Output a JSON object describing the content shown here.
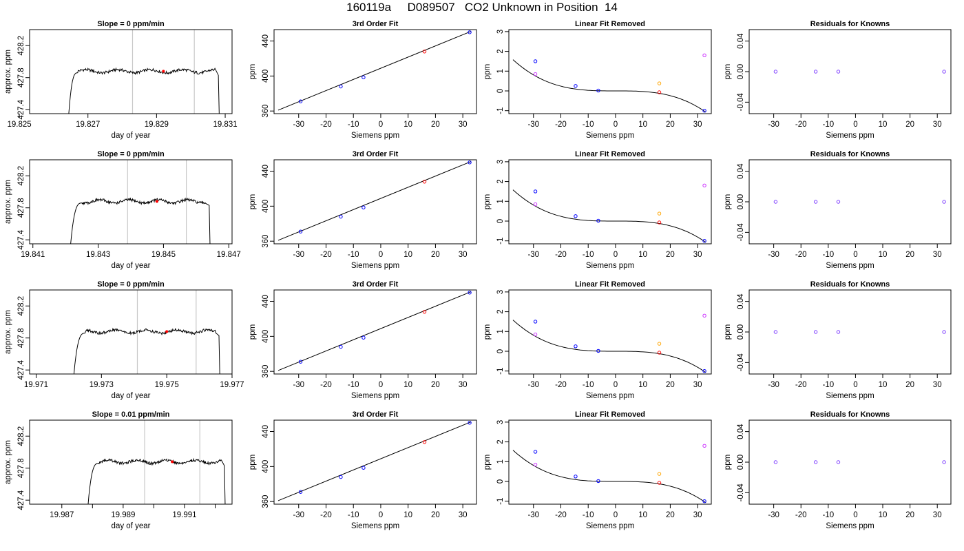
{
  "title": "160119a     D089507   CO2 Unknown in Position  14",
  "chart_data": [
    {
      "row": 0,
      "col": 0,
      "type": "line",
      "title": "Slope =  0  ppm/min",
      "xlabel": "day of year",
      "ylabel": "approx. ppm",
      "xlim": [
        19.8253,
        19.8312
      ],
      "ylim": [
        427.35,
        428.4
      ],
      "xticks": [
        19.825,
        19.827,
        19.829,
        19.831
      ],
      "xtick_labels": [
        "19.825",
        "19.827",
        "19.829",
        "19.831"
      ],
      "yticks": [
        427.4,
        427.8,
        428.2
      ],
      "ytick_labels": [
        "427.4",
        "427.8",
        "428.2"
      ],
      "trace": {
        "t_start": 19.8264,
        "t_plateau": 19.8267,
        "t_end_plateau": 19.8307,
        "t_stop": 19.8308,
        "level": 427.88
      },
      "vlines": [
        19.8283,
        19.8301
      ],
      "marker": {
        "x": 19.8292,
        "y": 427.88,
        "color": "#ff0000"
      }
    },
    {
      "row": 0,
      "col": 1,
      "type": "scatter",
      "title": "3rd Order Fit",
      "xlabel": "Siemens ppm",
      "ylabel": "ppm",
      "xlim": [
        -39,
        35
      ],
      "ylim": [
        357,
        453
      ],
      "xticks": [
        -30,
        -20,
        -10,
        0,
        10,
        20,
        30
      ],
      "xtick_labels": [
        "-30",
        "-20",
        "-10",
        "0",
        "10",
        "20",
        "30"
      ],
      "yticks": [
        360,
        400,
        440
      ],
      "ytick_labels": [
        "360",
        "400",
        "440"
      ],
      "fit_line": {
        "x": [
          -37.5,
          33
        ],
        "y": [
          361,
          451
        ]
      },
      "points": [
        {
          "x": -29.3,
          "y": 371,
          "color": "#0000ff"
        },
        {
          "x": -14.6,
          "y": 388,
          "color": "#0000ff"
        },
        {
          "x": -6.3,
          "y": 398.5,
          "color": "#0000ff"
        },
        {
          "x": 16,
          "y": 428,
          "color": "#ff0000"
        },
        {
          "x": 32.5,
          "y": 450,
          "color": "#0000ff"
        }
      ]
    },
    {
      "row": 0,
      "col": 2,
      "type": "scatter",
      "title": "Linear Fit Removed",
      "xlabel": "Siemens ppm",
      "ylabel": "ppm",
      "xlim": [
        -39,
        35
      ],
      "ylim": [
        -1.15,
        3.1
      ],
      "xticks": [
        -30,
        -20,
        -10,
        0,
        10,
        20,
        30
      ],
      "xtick_labels": [
        "-30",
        "-20",
        "-10",
        "0",
        "10",
        "20",
        "30"
      ],
      "yticks": [
        -1,
        0,
        1,
        2,
        3
      ],
      "ytick_labels": [
        "-1",
        "0",
        "1",
        "2",
        "3"
      ],
      "curve": {
        "x_from": -37.5,
        "x_to": 33,
        "x_center": 0,
        "coeff": 3e-05
      },
      "points": [
        {
          "x": -29.3,
          "y": 1.5,
          "color": "#0000ff"
        },
        {
          "x": -29.3,
          "y": 0.85,
          "color": "#cc33ff"
        },
        {
          "x": -14.6,
          "y": 0.25,
          "color": "#0000ff"
        },
        {
          "x": -6.3,
          "y": 0.02,
          "color": "#0000ff"
        },
        {
          "x": 16,
          "y": 0.38,
          "color": "#ffa500"
        },
        {
          "x": 16,
          "y": -0.07,
          "color": "#ff0000"
        },
        {
          "x": 32.5,
          "y": 1.8,
          "color": "#cc33ff"
        },
        {
          "x": 32.5,
          "y": -1.0,
          "color": "#0000ff"
        }
      ]
    },
    {
      "row": 0,
      "col": 3,
      "type": "scatter",
      "title": "Residuals for Knowns",
      "xlabel": "Siemens ppm",
      "ylabel": "ppm",
      "xlim": [
        -39,
        35
      ],
      "ylim": [
        -0.055,
        0.055
      ],
      "xticks": [
        -30,
        -20,
        -10,
        0,
        10,
        20,
        30
      ],
      "xtick_labels": [
        "-30",
        "-20",
        "-10",
        "0",
        "10",
        "20",
        "30"
      ],
      "yticks": [
        -0.04,
        0,
        0.04
      ],
      "ytick_labels": [
        "-0.04",
        "0.00",
        "0.04"
      ],
      "points": [
        {
          "x": -29.3,
          "y": 0,
          "color": "#7f3fff"
        },
        {
          "x": -14.6,
          "y": 0,
          "color": "#7f3fff"
        },
        {
          "x": -6.3,
          "y": 0,
          "color": "#7f3fff"
        },
        {
          "x": 32.5,
          "y": 0,
          "color": "#7f3fff"
        }
      ]
    },
    {
      "row": 1,
      "col": 0,
      "type": "line",
      "title": "Slope =  0  ppm/min",
      "xlabel": "day of year",
      "ylabel": "approx. ppm",
      "xlim": [
        19.8409,
        19.8471
      ],
      "ylim": [
        427.35,
        428.4
      ],
      "xticks": [
        19.841,
        19.843,
        19.845,
        19.847
      ],
      "xtick_labels": [
        "19.841",
        "19.843",
        "19.845",
        "19.847"
      ],
      "yticks": [
        427.4,
        427.8,
        428.2
      ],
      "ytick_labels": [
        "427.4",
        "427.8",
        "428.2"
      ],
      "trace": {
        "t_start": 19.8421,
        "t_plateau": 19.8425,
        "t_end_plateau": 19.8463,
        "t_stop": 19.8464,
        "level": 427.88
      },
      "vlines": [
        19.8439,
        19.8457
      ],
      "marker": {
        "x": 19.8448,
        "y": 427.88,
        "color": "#ff0000"
      }
    },
    {
      "row": 1,
      "col": 1,
      "type": "scatter",
      "title": "3rd Order Fit",
      "xlabel": "Siemens ppm",
      "ylabel": "ppm",
      "xlim": [
        -39,
        35
      ],
      "ylim": [
        357,
        453
      ],
      "xticks": [
        -30,
        -20,
        -10,
        0,
        10,
        20,
        30
      ],
      "xtick_labels": [
        "-30",
        "-20",
        "-10",
        "0",
        "10",
        "20",
        "30"
      ],
      "yticks": [
        360,
        400,
        440
      ],
      "ytick_labels": [
        "360",
        "400",
        "440"
      ],
      "fit_line": {
        "x": [
          -37.5,
          33
        ],
        "y": [
          361,
          451
        ]
      },
      "points": [
        {
          "x": -29.3,
          "y": 371,
          "color": "#0000ff"
        },
        {
          "x": -14.6,
          "y": 388,
          "color": "#0000ff"
        },
        {
          "x": -6.3,
          "y": 398.5,
          "color": "#0000ff"
        },
        {
          "x": 16,
          "y": 428,
          "color": "#ff0000"
        },
        {
          "x": 32.5,
          "y": 450,
          "color": "#0000ff"
        }
      ]
    },
    {
      "row": 1,
      "col": 2,
      "type": "scatter",
      "title": "Linear Fit Removed",
      "xlabel": "Siemens ppm",
      "ylabel": "ppm",
      "xlim": [
        -39,
        35
      ],
      "ylim": [
        -1.15,
        3.1
      ],
      "xticks": [
        -30,
        -20,
        -10,
        0,
        10,
        20,
        30
      ],
      "xtick_labels": [
        "-30",
        "-20",
        "-10",
        "0",
        "10",
        "20",
        "30"
      ],
      "yticks": [
        -1,
        0,
        1,
        2,
        3
      ],
      "ytick_labels": [
        "-1",
        "0",
        "1",
        "2",
        "3"
      ],
      "curve": {
        "x_from": -37.5,
        "x_to": 33,
        "x_center": 0,
        "coeff": 3e-05
      },
      "points": [
        {
          "x": -29.3,
          "y": 1.5,
          "color": "#0000ff"
        },
        {
          "x": -29.3,
          "y": 0.85,
          "color": "#cc33ff"
        },
        {
          "x": -14.6,
          "y": 0.25,
          "color": "#0000ff"
        },
        {
          "x": -6.3,
          "y": 0.02,
          "color": "#0000ff"
        },
        {
          "x": 16,
          "y": 0.38,
          "color": "#ffa500"
        },
        {
          "x": 16,
          "y": -0.07,
          "color": "#ff0000"
        },
        {
          "x": 32.5,
          "y": 1.8,
          "color": "#cc33ff"
        },
        {
          "x": 32.5,
          "y": -1.0,
          "color": "#0000ff"
        }
      ]
    },
    {
      "row": 1,
      "col": 3,
      "type": "scatter",
      "title": "Residuals for Knowns",
      "xlabel": "Siemens ppm",
      "ylabel": "ppm",
      "xlim": [
        -39,
        35
      ],
      "ylim": [
        -0.055,
        0.055
      ],
      "xticks": [
        -30,
        -20,
        -10,
        0,
        10,
        20,
        30
      ],
      "xtick_labels": [
        "-30",
        "-20",
        "-10",
        "0",
        "10",
        "20",
        "30"
      ],
      "yticks": [
        -0.04,
        0,
        0.04
      ],
      "ytick_labels": [
        "-0.04",
        "0.00",
        "0.04"
      ],
      "points": [
        {
          "x": -29.3,
          "y": 0,
          "color": "#7f3fff"
        },
        {
          "x": -14.6,
          "y": 0,
          "color": "#7f3fff"
        },
        {
          "x": -6.3,
          "y": 0,
          "color": "#7f3fff"
        },
        {
          "x": 32.5,
          "y": 0,
          "color": "#7f3fff"
        }
      ]
    },
    {
      "row": 2,
      "col": 0,
      "type": "line",
      "title": "Slope =  0  ppm/min",
      "xlabel": "day of year",
      "ylabel": "approx. ppm",
      "xlim": [
        19.9708,
        19.977
      ],
      "ylim": [
        427.35,
        428.4
      ],
      "xticks": [
        19.971,
        19.973,
        19.975,
        19.977
      ],
      "xtick_labels": [
        "19.971",
        "19.973",
        "19.975",
        "19.977"
      ],
      "yticks": [
        427.4,
        427.8,
        428.2
      ],
      "ytick_labels": [
        "427.4",
        "427.8",
        "428.2"
      ],
      "trace": {
        "t_start": 19.9721,
        "t_plateau": 19.9725,
        "t_end_plateau": 19.9765,
        "t_stop": 19.9766,
        "level": 427.88
      },
      "vlines": [
        19.9741,
        19.9759
      ],
      "marker": {
        "x": 19.975,
        "y": 427.88,
        "color": "#ff0000"
      }
    },
    {
      "row": 2,
      "col": 1,
      "type": "scatter",
      "title": "3rd Order Fit",
      "xlabel": "Siemens ppm",
      "ylabel": "ppm",
      "xlim": [
        -39,
        35
      ],
      "ylim": [
        357,
        453
      ],
      "xticks": [
        -30,
        -20,
        -10,
        0,
        10,
        20,
        30
      ],
      "xtick_labels": [
        "-30",
        "-20",
        "-10",
        "0",
        "10",
        "20",
        "30"
      ],
      "yticks": [
        360,
        400,
        440
      ],
      "ytick_labels": [
        "360",
        "400",
        "440"
      ],
      "fit_line": {
        "x": [
          -37.5,
          33
        ],
        "y": [
          361,
          451
        ]
      },
      "points": [
        {
          "x": -29.3,
          "y": 371,
          "color": "#0000ff"
        },
        {
          "x": -14.6,
          "y": 388,
          "color": "#0000ff"
        },
        {
          "x": -6.3,
          "y": 398.5,
          "color": "#0000ff"
        },
        {
          "x": 16,
          "y": 428,
          "color": "#ff0000"
        },
        {
          "x": 32.5,
          "y": 450,
          "color": "#0000ff"
        }
      ]
    },
    {
      "row": 2,
      "col": 2,
      "type": "scatter",
      "title": "Linear Fit Removed",
      "xlabel": "Siemens ppm",
      "ylabel": "ppm",
      "xlim": [
        -39,
        35
      ],
      "ylim": [
        -1.15,
        3.1
      ],
      "xticks": [
        -30,
        -20,
        -10,
        0,
        10,
        20,
        30
      ],
      "xtick_labels": [
        "-30",
        "-20",
        "-10",
        "0",
        "10",
        "20",
        "30"
      ],
      "yticks": [
        -1,
        0,
        1,
        2,
        3
      ],
      "ytick_labels": [
        "-1",
        "0",
        "1",
        "2",
        "3"
      ],
      "curve": {
        "x_from": -37.5,
        "x_to": 33,
        "x_center": 0,
        "coeff": 3e-05
      },
      "points": [
        {
          "x": -29.3,
          "y": 1.5,
          "color": "#0000ff"
        },
        {
          "x": -29.3,
          "y": 0.85,
          "color": "#cc33ff"
        },
        {
          "x": -14.6,
          "y": 0.25,
          "color": "#0000ff"
        },
        {
          "x": -6.3,
          "y": 0.02,
          "color": "#0000ff"
        },
        {
          "x": 16,
          "y": 0.38,
          "color": "#ffa500"
        },
        {
          "x": 16,
          "y": -0.07,
          "color": "#ff0000"
        },
        {
          "x": 32.5,
          "y": 1.8,
          "color": "#cc33ff"
        },
        {
          "x": 32.5,
          "y": -1.0,
          "color": "#0000ff"
        }
      ]
    },
    {
      "row": 2,
      "col": 3,
      "type": "scatter",
      "title": "Residuals for Knowns",
      "xlabel": "Siemens ppm",
      "ylabel": "ppm",
      "xlim": [
        -39,
        35
      ],
      "ylim": [
        -0.055,
        0.055
      ],
      "xticks": [
        -30,
        -20,
        -10,
        0,
        10,
        20,
        30
      ],
      "xtick_labels": [
        "-30",
        "-20",
        "-10",
        "0",
        "10",
        "20",
        "30"
      ],
      "yticks": [
        -0.04,
        0,
        0.04
      ],
      "ytick_labels": [
        "-0.04",
        "0.00",
        "0.04"
      ],
      "points": [
        {
          "x": -29.3,
          "y": 0,
          "color": "#7f3fff"
        },
        {
          "x": -14.6,
          "y": 0,
          "color": "#7f3fff"
        },
        {
          "x": -6.3,
          "y": 0,
          "color": "#7f3fff"
        },
        {
          "x": 32.5,
          "y": 0,
          "color": "#7f3fff"
        }
      ]
    },
    {
      "row": 3,
      "col": 0,
      "type": "line",
      "title": "Slope =  0.01  ppm/min",
      "xlabel": "day of year",
      "ylabel": "approx. ppm",
      "xlim": [
        19.98595,
        19.99255
      ],
      "ylim": [
        427.35,
        428.4
      ],
      "xticks": [
        19.987,
        19.988,
        19.989,
        19.99,
        19.991,
        19.992
      ],
      "xtick_labels": [
        "19.987",
        "",
        "19.989",
        "",
        "19.991",
        ""
      ],
      "yticks": [
        427.4,
        427.8,
        428.2
      ],
      "ytick_labels": [
        "427.4",
        "427.8",
        "428.2"
      ],
      "trace": {
        "t_start": 19.9878,
        "t_plateau": 19.9882,
        "t_end_plateau": 19.9922,
        "t_stop": 19.9923,
        "level": 427.88
      },
      "vlines": [
        19.9897,
        19.9915
      ],
      "marker": {
        "x": 19.9906,
        "y": 427.88,
        "color": "#ff0000"
      }
    },
    {
      "row": 3,
      "col": 1,
      "type": "scatter",
      "title": "3rd Order Fit",
      "xlabel": "Siemens ppm",
      "ylabel": "ppm",
      "xlim": [
        -39,
        35
      ],
      "ylim": [
        357,
        453
      ],
      "xticks": [
        -30,
        -20,
        -10,
        0,
        10,
        20,
        30
      ],
      "xtick_labels": [
        "-30",
        "-20",
        "-10",
        "0",
        "10",
        "20",
        "30"
      ],
      "yticks": [
        360,
        400,
        440
      ],
      "ytick_labels": [
        "360",
        "400",
        "440"
      ],
      "fit_line": {
        "x": [
          -37.5,
          33
        ],
        "y": [
          361,
          451
        ]
      },
      "points": [
        {
          "x": -29.3,
          "y": 371,
          "color": "#0000ff"
        },
        {
          "x": -14.6,
          "y": 388,
          "color": "#0000ff"
        },
        {
          "x": -6.3,
          "y": 398.5,
          "color": "#0000ff"
        },
        {
          "x": 16,
          "y": 428,
          "color": "#ff0000"
        },
        {
          "x": 32.5,
          "y": 450,
          "color": "#0000ff"
        }
      ]
    },
    {
      "row": 3,
      "col": 2,
      "type": "scatter",
      "title": "Linear Fit Removed",
      "xlabel": "Siemens ppm",
      "ylabel": "ppm",
      "xlim": [
        -39,
        35
      ],
      "ylim": [
        -1.15,
        3.1
      ],
      "xticks": [
        -30,
        -20,
        -10,
        0,
        10,
        20,
        30
      ],
      "xtick_labels": [
        "-30",
        "-20",
        "-10",
        "0",
        "10",
        "20",
        "30"
      ],
      "yticks": [
        -1,
        0,
        1,
        2,
        3
      ],
      "ytick_labels": [
        "-1",
        "0",
        "1",
        "2",
        "3"
      ],
      "curve": {
        "x_from": -37.5,
        "x_to": 33,
        "x_center": 0,
        "coeff": 3e-05
      },
      "points": [
        {
          "x": -29.3,
          "y": 1.5,
          "color": "#0000ff"
        },
        {
          "x": -29.3,
          "y": 0.85,
          "color": "#cc33ff"
        },
        {
          "x": -14.6,
          "y": 0.25,
          "color": "#0000ff"
        },
        {
          "x": -6.3,
          "y": 0.02,
          "color": "#0000ff"
        },
        {
          "x": 16,
          "y": 0.38,
          "color": "#ffa500"
        },
        {
          "x": 16,
          "y": -0.07,
          "color": "#ff0000"
        },
        {
          "x": 32.5,
          "y": 1.8,
          "color": "#cc33ff"
        },
        {
          "x": 32.5,
          "y": -1.0,
          "color": "#0000ff"
        }
      ]
    },
    {
      "row": 3,
      "col": 3,
      "type": "scatter",
      "title": "Residuals for Knowns",
      "xlabel": "Siemens ppm",
      "ylabel": "ppm",
      "xlim": [
        -39,
        35
      ],
      "ylim": [
        -0.055,
        0.055
      ],
      "xticks": [
        -30,
        -20,
        -10,
        0,
        10,
        20,
        30
      ],
      "xtick_labels": [
        "-30",
        "-20",
        "-10",
        "0",
        "10",
        "20",
        "30"
      ],
      "yticks": [
        -0.04,
        0,
        0.04
      ],
      "ytick_labels": [
        "-0.04",
        "0.00",
        "0.04"
      ],
      "points": [
        {
          "x": -29.3,
          "y": 0,
          "color": "#7f3fff"
        },
        {
          "x": -14.6,
          "y": 0,
          "color": "#7f3fff"
        },
        {
          "x": -6.3,
          "y": 0,
          "color": "#7f3fff"
        },
        {
          "x": 32.5,
          "y": 0,
          "color": "#7f3fff"
        }
      ]
    }
  ]
}
